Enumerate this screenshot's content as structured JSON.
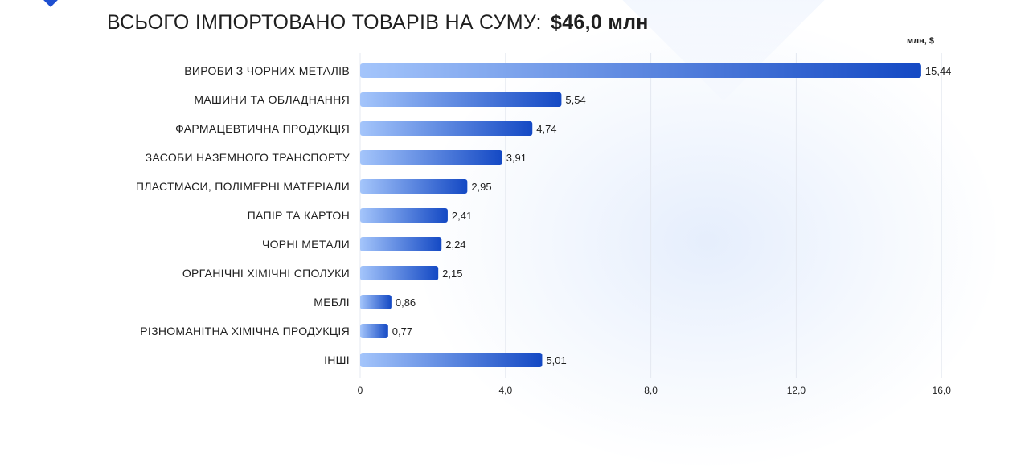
{
  "title": {
    "prefix": "ВСЬОГО ІМПОРТОВАНО ТОВАРІВ НА СУМУ:",
    "amount": "$46,0 млн"
  },
  "unit_label": "млн, $",
  "colors": {
    "bar_start": "#a4c5fb",
    "bar_end": "#1449c4",
    "grid": "#e4e8f0",
    "text": "#1f1f1f"
  },
  "chart_data": {
    "type": "bar",
    "orientation": "horizontal",
    "categories": [
      "ВИРОБИ З ЧОРНИХ МЕТАЛІВ",
      "МАШИНИ ТА ОБЛАДНАННЯ",
      "ФАРМАЦЕВТИЧНА ПРОДУКЦІЯ",
      "ЗАСОБИ НАЗЕМНОГО ТРАНСПОРТУ",
      "ПЛАСТМАСИ, ПОЛІМЕРНІ МАТЕРІАЛИ",
      "ПАПІР ТА КАРТОН",
      "ЧОРНІ МЕТАЛИ",
      "ОРГАНІЧНІ ХІМІЧНІ СПОЛУКИ",
      "МЕБЛІ",
      "РІЗНОМАНІТНА ХІМІЧНА ПРОДУКЦІЯ",
      "ІНШІ"
    ],
    "values": [
      15.44,
      5.54,
      4.74,
      3.91,
      2.95,
      2.41,
      2.24,
      2.15,
      0.86,
      0.77,
      5.01
    ],
    "value_labels": [
      "15,44",
      "5,54",
      "4,74",
      "3,91",
      "2,95",
      "2,41",
      "2,24",
      "2,15",
      "0,86",
      "0,77",
      "5,01"
    ],
    "x_ticks": [
      0,
      4,
      8,
      12,
      16
    ],
    "x_tick_labels": [
      "0",
      "4,0",
      "8,0",
      "12,0",
      "16,0"
    ],
    "xlim": [
      0,
      16
    ],
    "grid": true
  }
}
